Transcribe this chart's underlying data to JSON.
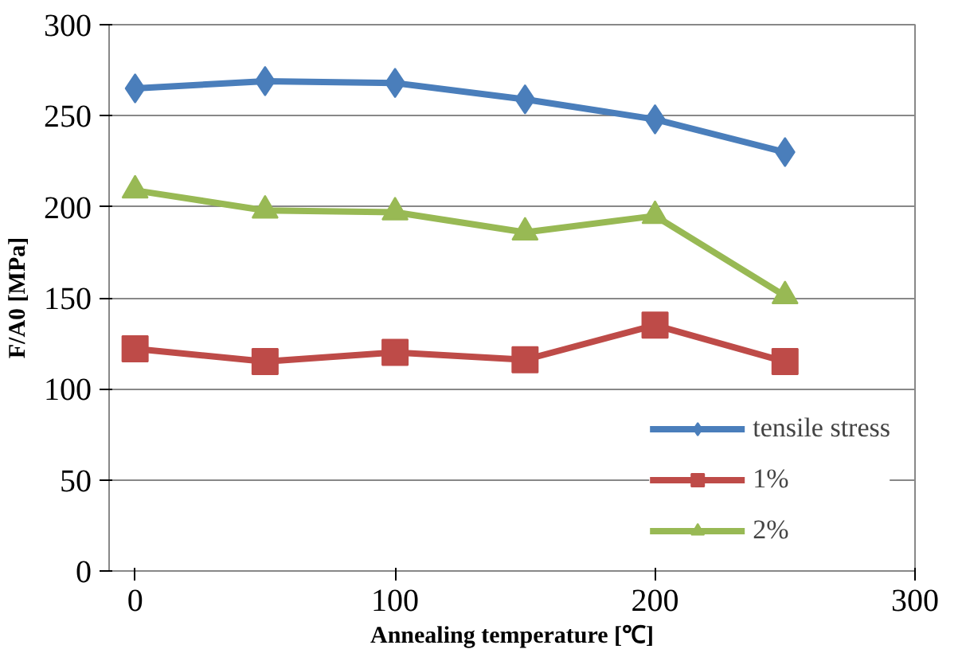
{
  "chart_data": {
    "type": "line",
    "xlabel": "Annealing temperature [℃]",
    "ylabel": "F/A0 [MPa]",
    "x": [
      0,
      50,
      100,
      150,
      200,
      250
    ],
    "series": [
      {
        "name": "tensile stress",
        "color": "#4a7ebb",
        "marker": "diamond",
        "values": [
          265,
          269,
          268,
          259,
          248,
          230
        ]
      },
      {
        "name": "1%",
        "color": "#be4b48",
        "marker": "square",
        "values": [
          122,
          115,
          120,
          116,
          135,
          115
        ]
      },
      {
        "name": "2%",
        "color": "#98b954",
        "marker": "triangle",
        "values": [
          209,
          198,
          197,
          186,
          195,
          151
        ]
      }
    ],
    "xlim": [
      -10,
      300
    ],
    "xticks": [
      0,
      100,
      200,
      300
    ],
    "ylim": [
      0,
      300
    ],
    "yticks": [
      0,
      50,
      100,
      150,
      200,
      250,
      300
    ],
    "grid": "y",
    "legend": "bottom right"
  }
}
